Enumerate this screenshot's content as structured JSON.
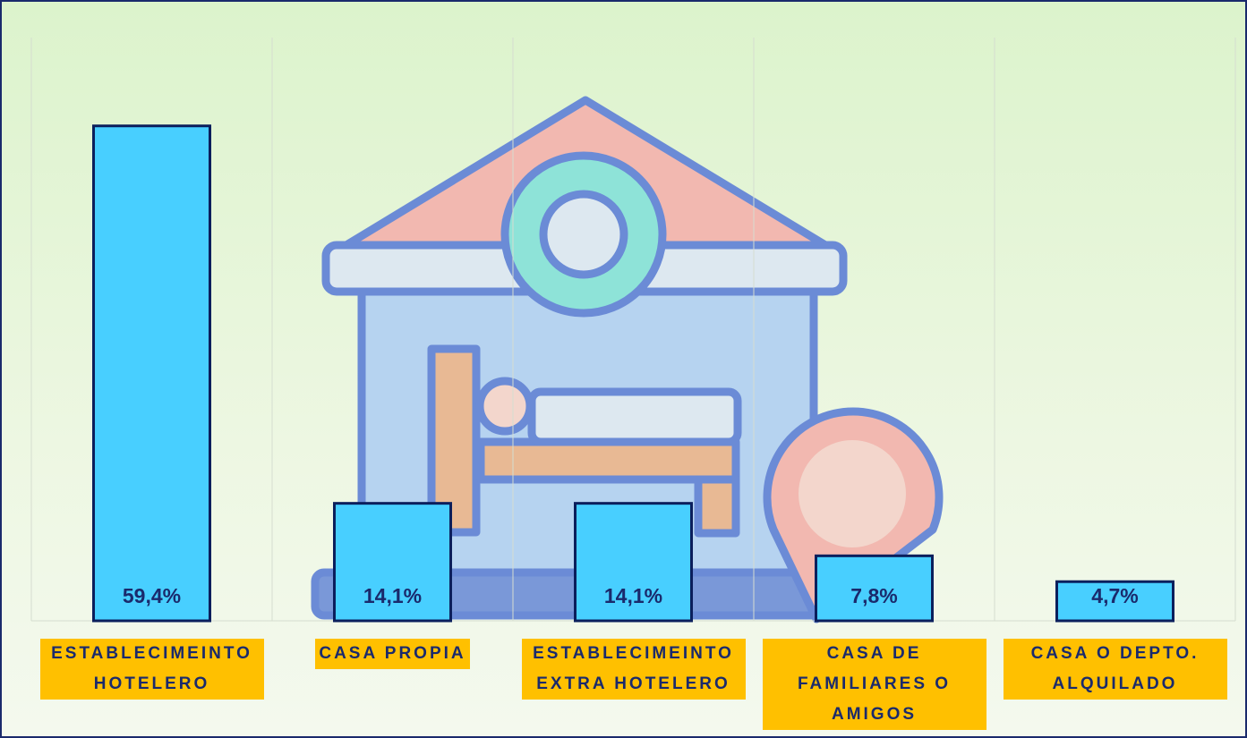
{
  "chart_data": {
    "type": "bar",
    "categories": [
      "ESTABLECIMEINTO HOTELERO",
      "CASA PROPIA",
      "ESTABLECIMEINTO EXTRA HOTELERO",
      "CASA DE FAMILIARES O AMIGOS",
      "CASA O DEPTO. ALQUILADO"
    ],
    "values": [
      59.4,
      14.1,
      14.1,
      7.8,
      4.7
    ],
    "value_labels": [
      "59,4%",
      "14,1%",
      "14,1%",
      "7,8%",
      "4,7%"
    ],
    "color": "#48cfff",
    "ylim": [
      0,
      70
    ]
  }
}
